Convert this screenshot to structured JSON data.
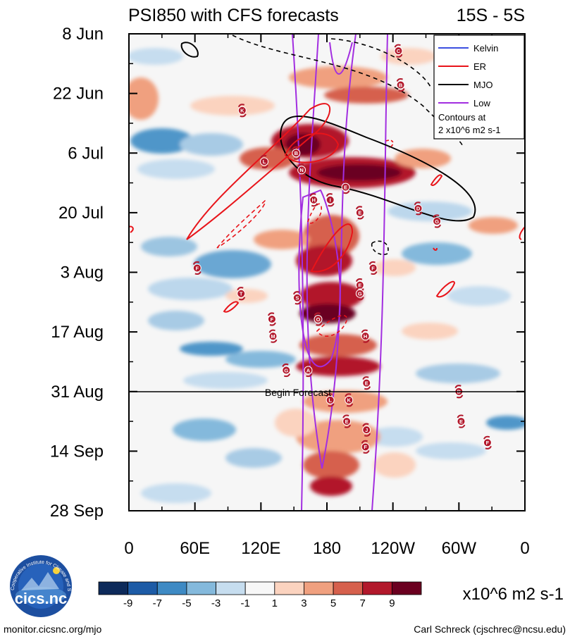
{
  "chart_data": {
    "type": "heatmap",
    "title": "PSI850 with CFS forecasts",
    "region": "15S - 5S",
    "x_ticks": [
      "0",
      "60E",
      "120E",
      "180",
      "120W",
      "60W",
      "0"
    ],
    "y_ticks": [
      "8 Jun",
      "22 Jun",
      "6 Jul",
      "20 Jul",
      "3 Aug",
      "17 Aug",
      "31 Aug",
      "14 Sep",
      "28 Sep"
    ],
    "forecast_label": "Begin Forecast",
    "forecast_start": "31 Aug",
    "legend": [
      {
        "name": "Kelvin",
        "color": "#3b4fe0"
      },
      {
        "name": "ER",
        "color": "#e8141a"
      },
      {
        "name": "MJO",
        "color": "#000000"
      },
      {
        "name": "Low",
        "color": "#a22ee0"
      }
    ],
    "contour_note_1": "Contours at",
    "contour_note_2": "2 x10^6 m2 s-1",
    "colorbar": {
      "labels": [
        "-9",
        "-7",
        "-5",
        "-3",
        "-1",
        "1",
        "3",
        "5",
        "7",
        "9"
      ],
      "colors": [
        "#0d2a5a",
        "#1d5ba6",
        "#3e8ac4",
        "#84b9dc",
        "#c6ddef",
        "#f7f7f7",
        "#fbd3bf",
        "#f0a07f",
        "#d6604d",
        "#b2182b",
        "#6b0020"
      ],
      "units": "x10^6 m2 s-1"
    },
    "storms": [
      {
        "l": "C",
        "lon": 245,
        "day": 4
      },
      {
        "l": "B",
        "lon": 247,
        "day": 12
      },
      {
        "l": "K",
        "lon": 103,
        "day": 18
      },
      {
        "l": "L",
        "lon": 123,
        "day": 30
      },
      {
        "l": "B",
        "lon": 152,
        "day": 28
      },
      {
        "l": "N",
        "lon": 157,
        "day": 32
      },
      {
        "l": "H",
        "lon": 168,
        "day": 39
      },
      {
        "l": "I",
        "lon": 183,
        "day": 39
      },
      {
        "l": "E",
        "lon": 197,
        "day": 36
      },
      {
        "l": "E",
        "lon": 210,
        "day": 42
      },
      {
        "l": "D",
        "lon": 263,
        "day": 41
      },
      {
        "l": "G",
        "lon": 280,
        "day": 44
      },
      {
        "l": "F",
        "lon": 62,
        "day": 55
      },
      {
        "l": "T",
        "lon": 102,
        "day": 61
      },
      {
        "l": "S",
        "lon": 153,
        "day": 62
      },
      {
        "l": "O",
        "lon": 172,
        "day": 67
      },
      {
        "l": "F",
        "lon": 130,
        "day": 67
      },
      {
        "l": "E",
        "lon": 210,
        "day": 59
      },
      {
        "l": "G",
        "lon": 210,
        "day": 61
      },
      {
        "l": "F",
        "lon": 222,
        "day": 55
      },
      {
        "l": "M",
        "lon": 131,
        "day": 71
      },
      {
        "l": "H",
        "lon": 215,
        "day": 71
      },
      {
        "l": "G",
        "lon": 143,
        "day": 79
      },
      {
        "l": "A",
        "lon": 163,
        "day": 79
      },
      {
        "l": "E",
        "lon": 216,
        "day": 82
      },
      {
        "l": "D",
        "lon": 300,
        "day": 84
      },
      {
        "l": "L",
        "lon": 183,
        "day": 86
      },
      {
        "l": "K",
        "lon": 200,
        "day": 86
      },
      {
        "l": "E",
        "lon": 198,
        "day": 91
      },
      {
        "l": "J",
        "lon": 216,
        "day": 93
      },
      {
        "l": "E",
        "lon": 302,
        "day": 91
      },
      {
        "l": "F",
        "lon": 326,
        "day": 96
      },
      {
        "l": "F",
        "lon": 215,
        "day": 97
      }
    ]
  },
  "footer": {
    "url": "monitor.cicsnc.org/mjo",
    "author": "Carl Schreck (cjschrec@ncsu.edu)",
    "logo_text": "cics.nc",
    "logo_ring_text": "Cooperative Institute for Climate and Satellites"
  }
}
